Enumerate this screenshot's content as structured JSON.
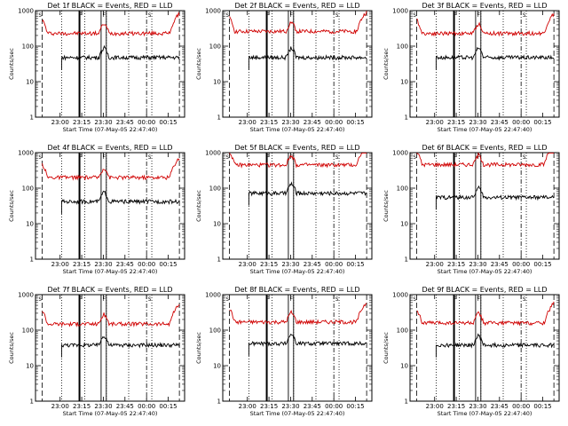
{
  "chart_data": [
    {
      "type": "line",
      "title": "Det 1f BLACK = Events, RED = LLD",
      "xlabel": "Start Time (07-May-05 22:47:40)",
      "ylabel": "Counts/sec",
      "ylim": [
        1,
        1000
      ],
      "yscale": "log",
      "yticks": [
        "1",
        "10",
        "100",
        "1000"
      ],
      "xticks": [
        "23:00",
        "23:15",
        "23:30",
        "23:45",
        "00:00",
        "00:15"
      ],
      "markers": [
        "S",
        "F",
        "F",
        "S"
      ],
      "series": [
        {
          "name": "RED",
          "color": "#d00000",
          "level": 230
        },
        {
          "name": "BLACK",
          "color": "#000000",
          "level": 48
        }
      ]
    },
    {
      "type": "line",
      "title": "Det 2f BLACK = Events, RED = LLD",
      "xlabel": "Start Time (07-May-05 22:47:40)",
      "ylabel": "Counts/sec",
      "ylim": [
        1,
        1000
      ],
      "yscale": "log",
      "yticks": [
        "1",
        "10",
        "100",
        "1000"
      ],
      "xticks": [
        "23:00",
        "23:15",
        "23:30",
        "23:45",
        "00:00",
        "00:15"
      ],
      "markers": [
        "S",
        "F",
        "F",
        "S"
      ],
      "series": [
        {
          "name": "RED",
          "color": "#d00000",
          "level": 260
        },
        {
          "name": "BLACK",
          "color": "#000000",
          "level": 48
        }
      ]
    },
    {
      "type": "line",
      "title": "Det 3f BLACK = Events, RED = LLD",
      "xlabel": "Start Time (07-May-05 22:47:40)",
      "ylabel": "Counts/sec",
      "ylim": [
        1,
        1000
      ],
      "yscale": "log",
      "yticks": [
        "1",
        "10",
        "100",
        "1000"
      ],
      "xticks": [
        "23:00",
        "23:15",
        "23:30",
        "23:45",
        "00:00",
        "00:15"
      ],
      "markers": [
        "S",
        "F",
        "F",
        "S"
      ],
      "series": [
        {
          "name": "RED",
          "color": "#d00000",
          "level": 230
        },
        {
          "name": "BLACK",
          "color": "#000000",
          "level": 48
        }
      ]
    },
    {
      "type": "line",
      "title": "Det 4f BLACK = Events, RED = LLD",
      "xlabel": "Start Time (07-May-05 22:47:40)",
      "ylabel": "Counts/sec",
      "ylim": [
        1,
        1000
      ],
      "yscale": "log",
      "yticks": [
        "1",
        "10",
        "100",
        "1000"
      ],
      "xticks": [
        "23:00",
        "23:15",
        "23:30",
        "23:45",
        "00:00",
        "00:15"
      ],
      "markers": [
        "S",
        "F",
        "F",
        "S"
      ],
      "series": [
        {
          "name": "RED",
          "color": "#d00000",
          "level": 200
        },
        {
          "name": "BLACK",
          "color": "#000000",
          "level": 42
        }
      ]
    },
    {
      "type": "line",
      "title": "Det 5f BLACK = Events, RED = LLD",
      "xlabel": "Start Time (07-May-05 22:47:40)",
      "ylabel": "Counts/sec",
      "ylim": [
        1,
        1000
      ],
      "yscale": "log",
      "yticks": [
        "1",
        "10",
        "100",
        "1000"
      ],
      "xticks": [
        "23:00",
        "23:15",
        "23:30",
        "23:45",
        "00:00",
        "00:15"
      ],
      "markers": [
        "S",
        "F",
        "F",
        "S"
      ],
      "series": [
        {
          "name": "RED",
          "color": "#d00000",
          "level": 450
        },
        {
          "name": "BLACK",
          "color": "#000000",
          "level": 72
        }
      ]
    },
    {
      "type": "line",
      "title": "Det 6f BLACK = Events, RED = LLD",
      "xlabel": "Start Time (07-May-05 22:47:40)",
      "ylabel": "Counts/sec",
      "ylim": [
        1,
        1000
      ],
      "yscale": "log",
      "yticks": [
        "1",
        "10",
        "100",
        "1000"
      ],
      "xticks": [
        "23:00",
        "23:15",
        "23:30",
        "23:45",
        "00:00",
        "00:15"
      ],
      "markers": [
        "S",
        "F",
        "F",
        "S"
      ],
      "series": [
        {
          "name": "RED",
          "color": "#d00000",
          "level": 460
        },
        {
          "name": "BLACK",
          "color": "#000000",
          "level": 55
        }
      ]
    },
    {
      "type": "line",
      "title": "Det 7f BLACK = Events, RED = LLD",
      "xlabel": "Start Time (07-May-05 22:47:40)",
      "ylabel": "Counts/sec",
      "ylim": [
        1,
        1000
      ],
      "yscale": "log",
      "yticks": [
        "1",
        "10",
        "100",
        "1000"
      ],
      "xticks": [
        "23:00",
        "23:15",
        "23:30",
        "23:45",
        "00:00",
        "00:15"
      ],
      "markers": [
        "S",
        "F",
        "F",
        "S"
      ],
      "series": [
        {
          "name": "RED",
          "color": "#d00000",
          "level": 150
        },
        {
          "name": "BLACK",
          "color": "#000000",
          "level": 38
        }
      ]
    },
    {
      "type": "line",
      "title": "Det 8f BLACK = Events, RED = LLD",
      "xlabel": "Start Time (07-May-05 22:47:40)",
      "ylabel": "Counts/sec",
      "ylim": [
        1,
        1000
      ],
      "yscale": "log",
      "yticks": [
        "1",
        "10",
        "100",
        "1000"
      ],
      "xticks": [
        "23:00",
        "23:15",
        "23:30",
        "23:45",
        "00:00",
        "00:15"
      ],
      "markers": [
        "S",
        "F",
        "F",
        "S"
      ],
      "series": [
        {
          "name": "RED",
          "color": "#d00000",
          "level": 170
        },
        {
          "name": "BLACK",
          "color": "#000000",
          "level": 42
        }
      ]
    },
    {
      "type": "line",
      "title": "Det 9f BLACK = Events, RED = LLD",
      "xlabel": "Start Time (07-May-05 22:47:40)",
      "ylabel": "Counts/sec",
      "ylim": [
        1,
        1000
      ],
      "yscale": "log",
      "yticks": [
        "1",
        "10",
        "100",
        "1000"
      ],
      "xticks": [
        "23:00",
        "23:15",
        "23:30",
        "23:45",
        "00:00",
        "00:15"
      ],
      "markers": [
        "S",
        "F",
        "F",
        "S"
      ],
      "series": [
        {
          "name": "RED",
          "color": "#d00000",
          "level": 160
        },
        {
          "name": "BLACK",
          "color": "#000000",
          "level": 38
        }
      ]
    }
  ]
}
